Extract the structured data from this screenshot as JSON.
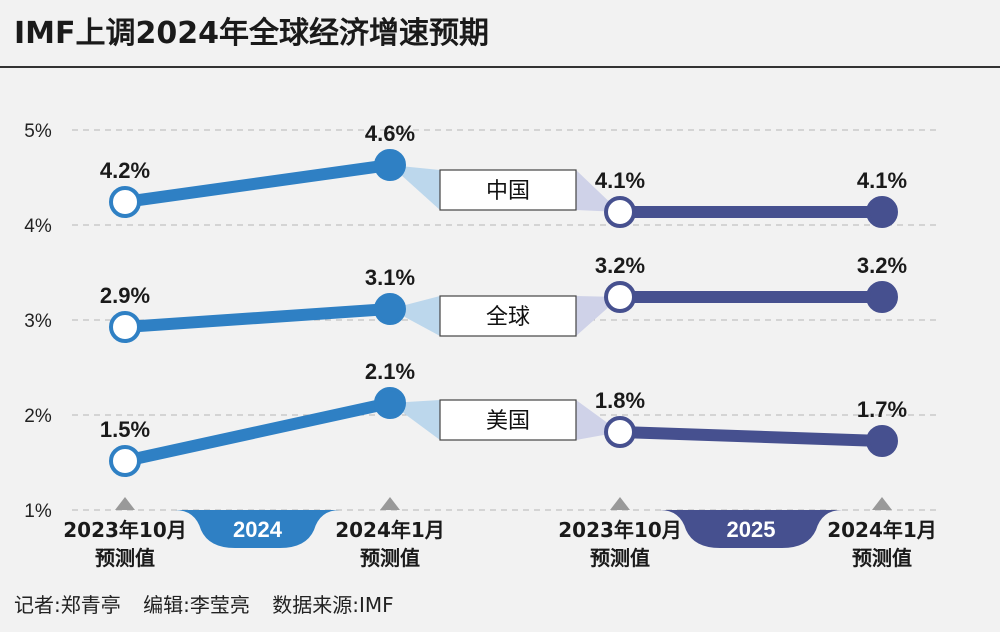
{
  "title": "IMF上调2024年全球经济增速预期",
  "footer": {
    "reporter": "记者:郑青亭",
    "editor": "编辑:李莹亮",
    "source": "数据来源:IMF"
  },
  "colors": {
    "year2024": "#2f80c4",
    "year2025": "#46508f",
    "connector": "#bcd7ec",
    "connector2025": "#cfd2e8",
    "grid": "#b5b5b5"
  },
  "chart_data": {
    "type": "line",
    "y_ticks": [
      "5%",
      "4%",
      "3%",
      "2%",
      "1%"
    ],
    "ylim": [
      1,
      5
    ],
    "x_labels": [
      {
        "line1": "2023年10月",
        "line2": "预测值"
      },
      {
        "line1": "2024年1月",
        "line2": "预测值"
      },
      {
        "line1": "2023年10月",
        "line2": "预测值"
      },
      {
        "line1": "2024年1月",
        "line2": "预测值"
      }
    ],
    "years": [
      "2024",
      "2025"
    ],
    "series": [
      {
        "name": "中国",
        "values": [
          4.2,
          4.6,
          4.1,
          4.1
        ],
        "labels": [
          "4.2%",
          "4.6%",
          "4.1%",
          "4.1%"
        ]
      },
      {
        "name": "全球",
        "values": [
          2.9,
          3.1,
          3.2,
          3.2
        ],
        "labels": [
          "2.9%",
          "3.1%",
          "3.2%",
          "3.2%"
        ]
      },
      {
        "name": "美国",
        "values": [
          1.5,
          2.1,
          1.8,
          1.7
        ],
        "labels": [
          "1.5%",
          "2.1%",
          "1.8%",
          "1.7%"
        ]
      }
    ]
  }
}
